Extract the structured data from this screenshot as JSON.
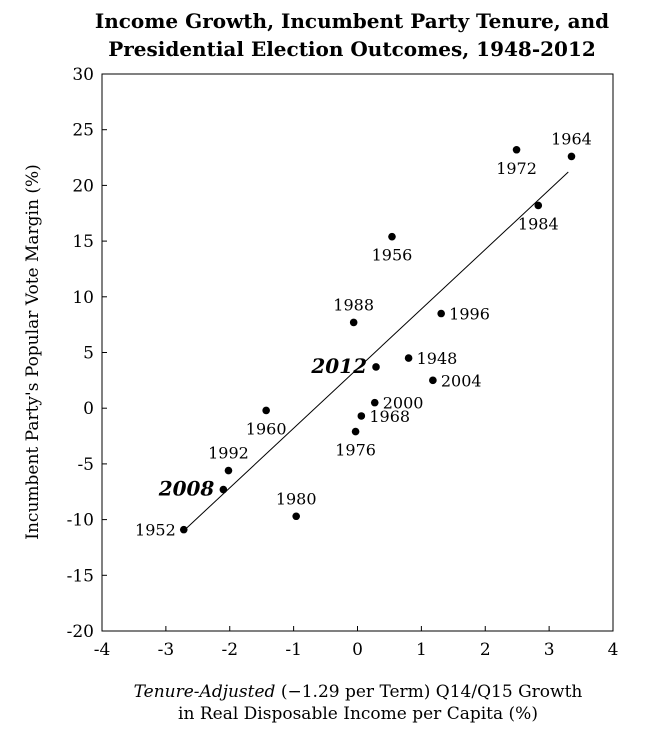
{
  "chart_data": {
    "type": "scatter",
    "title_lines": [
      "Income Growth, Incumbent Party  Tenure, and",
      "Presidential Election Outcomes, 1948-2012"
    ],
    "xlabel_italic": "Tenure-Adjusted",
    "xlabel_rest": " (−1.29 per Term) Q14/Q15  Growth",
    "xlabel_line2": "in Real Disposable Income per Capita (%)",
    "ylabel": "Incumbent Party's Popular Vote Margin (%)",
    "xlim": [
      -4,
      4
    ],
    "ylim": [
      -20,
      30
    ],
    "x_ticks": [
      {
        "value": -4,
        "label": "-4"
      },
      {
        "value": -3,
        "label": "-3"
      },
      {
        "value": -2,
        "label": "-2"
      },
      {
        "value": -1,
        "label": "-1"
      },
      {
        "value": 0,
        "label": "0"
      },
      {
        "value": 1,
        "label": "1"
      },
      {
        "value": 2,
        "label": "2"
      },
      {
        "value": 3,
        "label": "3"
      },
      {
        "value": 4,
        "label": "4"
      }
    ],
    "y_ticks": [
      {
        "value": -20,
        "label": "-20"
      },
      {
        "value": -15,
        "label": "-15"
      },
      {
        "value": -10,
        "label": "-10"
      },
      {
        "value": -5,
        "label": "-5"
      },
      {
        "value": 0,
        "label": "0"
      },
      {
        "value": 5,
        "label": "5"
      },
      {
        "value": 10,
        "label": "10"
      },
      {
        "value": 15,
        "label": "15"
      },
      {
        "value": 20,
        "label": "20"
      },
      {
        "value": 25,
        "label": "25"
      },
      {
        "value": 30,
        "label": "30"
      }
    ],
    "points": [
      {
        "label": "1948",
        "x": 0.8,
        "y": 4.5,
        "label_pos": "right",
        "highlight": false
      },
      {
        "label": "1952",
        "x": -2.72,
        "y": -10.9,
        "label_pos": "left",
        "highlight": false
      },
      {
        "label": "1956",
        "x": 0.54,
        "y": 15.4,
        "label_pos": "below",
        "highlight": false
      },
      {
        "label": "1960",
        "x": -1.43,
        "y": -0.2,
        "label_pos": "below",
        "highlight": false
      },
      {
        "label": "1964",
        "x": 3.35,
        "y": 22.6,
        "label_pos": "above",
        "highlight": false
      },
      {
        "label": "1968",
        "x": 0.06,
        "y": -0.7,
        "label_pos": "right",
        "highlight": false
      },
      {
        "label": "1972",
        "x": 2.49,
        "y": 23.2,
        "label_pos": "below",
        "highlight": false
      },
      {
        "label": "1976",
        "x": -0.03,
        "y": -2.1,
        "label_pos": "below",
        "highlight": false
      },
      {
        "label": "1980",
        "x": -0.96,
        "y": -9.7,
        "label_pos": "above",
        "highlight": false
      },
      {
        "label": "1984",
        "x": 2.83,
        "y": 18.2,
        "label_pos": "below",
        "highlight": false
      },
      {
        "label": "1988",
        "x": -0.06,
        "y": 7.7,
        "label_pos": "above",
        "highlight": false
      },
      {
        "label": "1992",
        "x": -2.02,
        "y": -5.6,
        "label_pos": "above",
        "highlight": false
      },
      {
        "label": "1996",
        "x": 1.31,
        "y": 8.5,
        "label_pos": "right",
        "highlight": false
      },
      {
        "label": "2000",
        "x": 0.27,
        "y": 0.5,
        "label_pos": "right",
        "highlight": false
      },
      {
        "label": "2004",
        "x": 1.18,
        "y": 2.5,
        "label_pos": "right",
        "highlight": false
      },
      {
        "label": "2008",
        "x": -2.1,
        "y": -7.3,
        "label_pos": "left",
        "highlight": true
      },
      {
        "label": "2012",
        "x": 0.29,
        "y": 3.7,
        "label_pos": "left",
        "highlight": true
      }
    ],
    "fit_line": {
      "x1": -2.72,
      "y1": -11.0,
      "x2": 3.3,
      "y2": 21.2
    }
  }
}
